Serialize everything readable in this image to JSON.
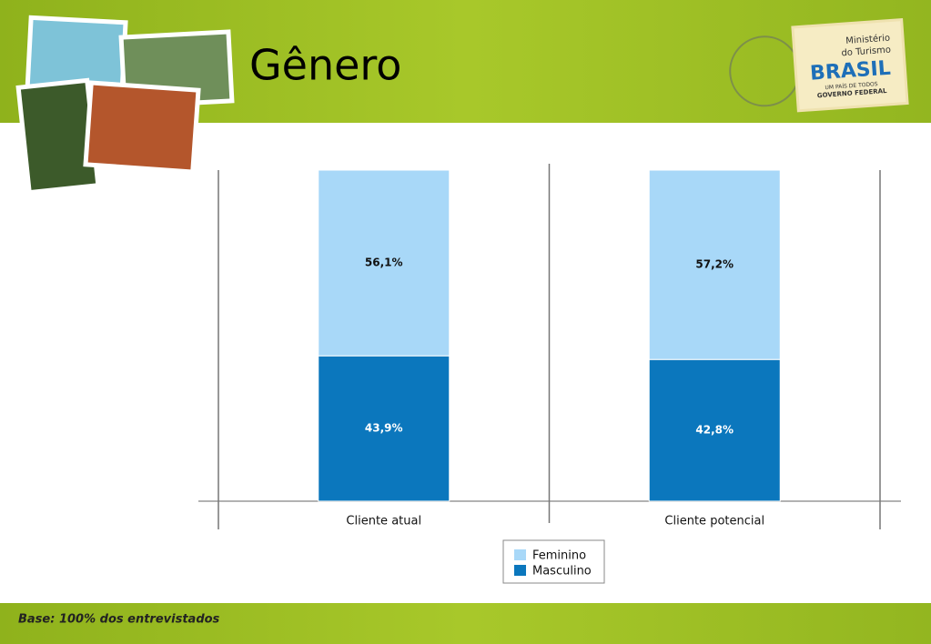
{
  "header": {
    "logo": {
      "line1": "Ministério",
      "line2": "do Turismo",
      "brand": "BRASIL",
      "motto": "UM PAÍS DE TODOS",
      "government": "GOVERNO FEDERAL"
    }
  },
  "chart_data": {
    "type": "stacked-bar",
    "title": "Gênero",
    "categories": [
      "Cliente atual",
      "Cliente potencial"
    ],
    "series": [
      {
        "name": "Masculino",
        "color": "#0b77bd",
        "values": [
          43.9,
          42.8
        ],
        "value_labels": [
          "43,9%",
          "42,8%"
        ]
      },
      {
        "name": "Feminino",
        "color": "#a8d8f8",
        "values": [
          56.1,
          57.2
        ],
        "value_labels": [
          "56,1%",
          "57,2%"
        ]
      }
    ],
    "ylim": [
      0,
      100
    ]
  },
  "footer": {
    "note": "Base: 100% dos entrevistados"
  }
}
